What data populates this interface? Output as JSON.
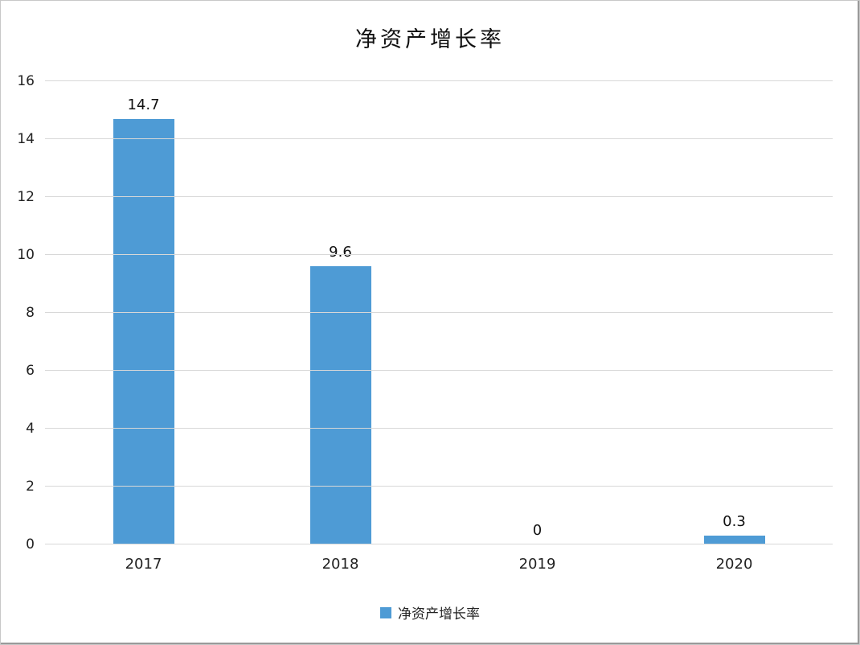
{
  "chart_data": {
    "type": "bar",
    "title": "净资产增长率",
    "categories": [
      "2017",
      "2018",
      "2019",
      "2020"
    ],
    "values": [
      14.7,
      9.6,
      0,
      0.3
    ],
    "value_labels": [
      "14.7",
      "9.6",
      "0",
      "0.3"
    ],
    "y_ticks": [
      0,
      2,
      4,
      6,
      8,
      10,
      12,
      14,
      16
    ],
    "ylim": [
      0,
      16
    ],
    "grid": true,
    "xlabel": "",
    "ylabel": "",
    "legend": {
      "position": "bottom",
      "label": "净资产增长率"
    },
    "bar_color": "#4e9bd5"
  }
}
